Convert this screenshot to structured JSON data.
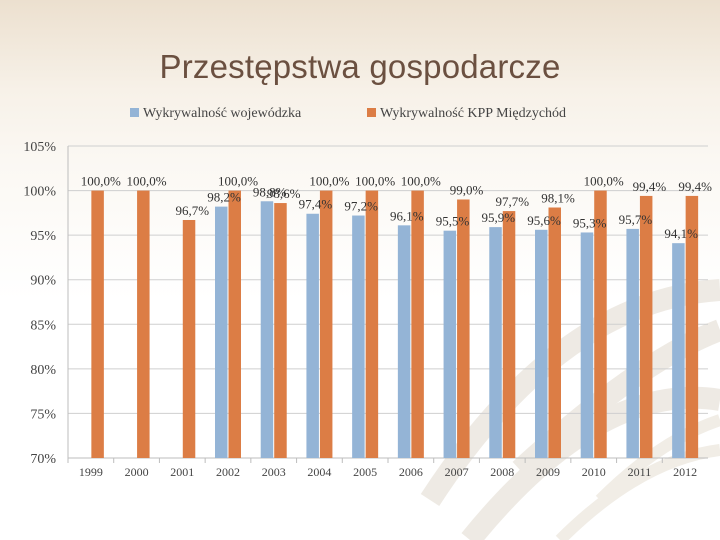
{
  "slide": {
    "title": "Przestępstwa gospodarcze"
  },
  "colors": {
    "series1": "#94b4d6",
    "series2": "#dc7d45",
    "gridline": "#cfcfcf",
    "axis_text": "#444444",
    "label_text": "#333333"
  },
  "chart_data": {
    "type": "bar",
    "title": "",
    "xlabel": "",
    "ylabel": "",
    "ylim": [
      70,
      105
    ],
    "yticks": [
      70,
      75,
      80,
      85,
      90,
      95,
      100,
      105
    ],
    "ytick_labels": [
      "70%",
      "75%",
      "80%",
      "85%",
      "90%",
      "95%",
      "100%",
      "105%"
    ],
    "categories": [
      "1999",
      "2000",
      "2001",
      "2002",
      "2003",
      "2004",
      "2005",
      "2006",
      "2007",
      "2008",
      "2009",
      "2010",
      "2011",
      "2012"
    ],
    "legend_position": "top",
    "series": [
      {
        "name": "Wykrywalność wojewódzka",
        "values": [
          null,
          null,
          null,
          98.2,
          98.8,
          97.4,
          97.2,
          96.1,
          95.5,
          95.9,
          95.6,
          95.3,
          95.7,
          94.1
        ],
        "labels": [
          "",
          "",
          "",
          "98,2%",
          "98,8%",
          "97,4%",
          "97,2%",
          "96,1%",
          "95,5%",
          "95,9%",
          "95,6%",
          "95,3%",
          "95,7%",
          "94,1%"
        ]
      },
      {
        "name": "Wykrywalność KPP Międzychód",
        "values": [
          100.0,
          100.0,
          96.7,
          100.0,
          98.6,
          100.0,
          100.0,
          100.0,
          99.0,
          97.7,
          98.1,
          100.0,
          99.4,
          99.4
        ],
        "labels": [
          "100,0%",
          "100,0%",
          "96,7%",
          "100,0%",
          "98,6%",
          "100,0%",
          "100,0%",
          "100,0%",
          "99,0%",
          "97,7%",
          "98,1%",
          "100,0%",
          "99,4%",
          "99,4%"
        ]
      }
    ]
  }
}
